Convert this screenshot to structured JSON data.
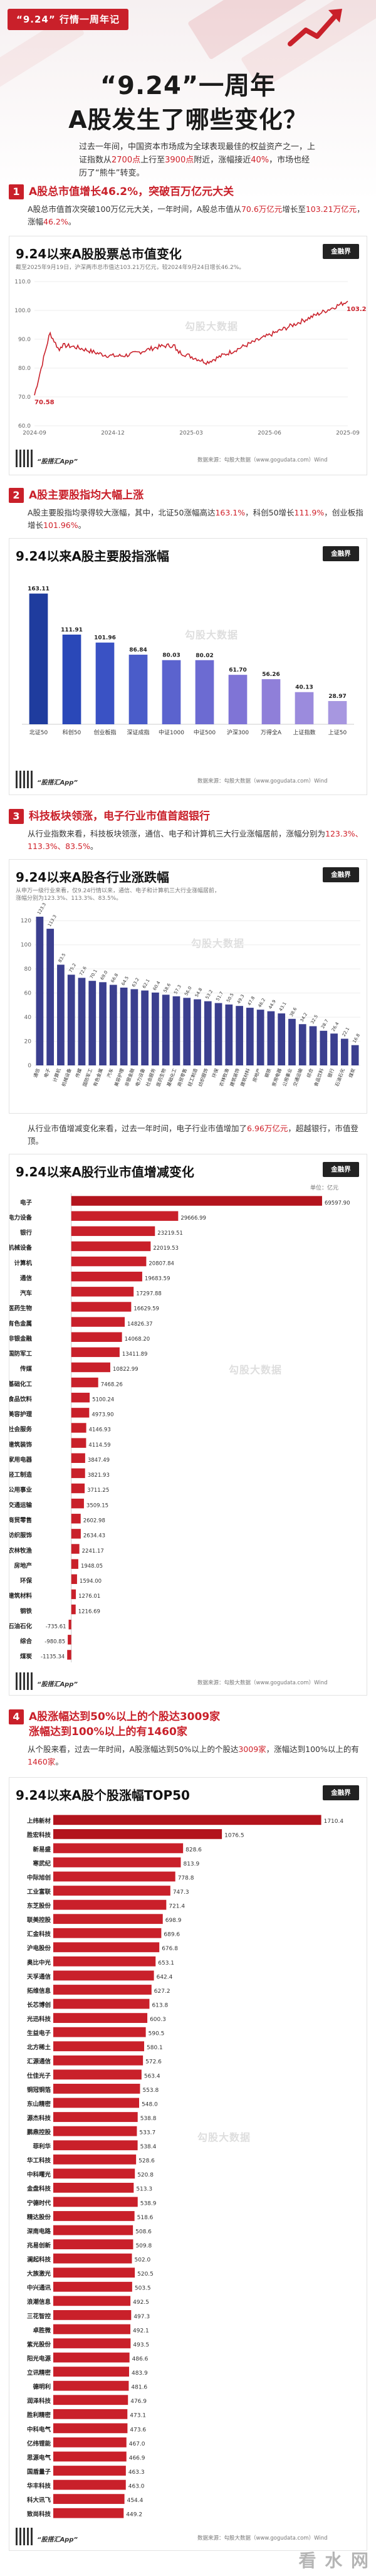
{
  "hero": {
    "tag": "“9.24” 行情一周年记",
    "title1": "“9.24”一周年",
    "title2": "A股发生了哪些变化？",
    "intro_a": "过去一年间，中国资本市场成为全球表现最佳的权益资产之一，上证指数从",
    "intro_b": "2700点",
    "intro_c": "上行至",
    "intro_d": "3900点",
    "intro_e": "附近，涨幅接近",
    "intro_f": "40%",
    "intro_g": "，市场也经历了“熊牛”转变。"
  },
  "s1": {
    "num": "1",
    "title": "A股总市值增长46.2%，突破百万亿元大关",
    "text_a": "A股总市值首次突破100万亿元大关，一年时间，A股总市值从",
    "text_b": "70.6万亿元",
    "text_c": "增长至",
    "text_d": "103.21万亿元",
    "text_e": "，涨幅",
    "text_f": "46.2%",
    "text_g": "。"
  },
  "card1": {
    "title": "9.24以来A股股票总市值变化",
    "sub": "截至2025年9月19日，沪深两市总市值达103.21万亿元，较2024年9月24日增长46.2%。",
    "logo": "金融界",
    "wm": "勾股大数据",
    "start_label": "70.58",
    "end_label": "103.21",
    "app": "“股搭汇App”",
    "note": "数据来源：勾股大数据（www.gogudata.com）Wind",
    "dates": [
      "2024-09",
      "2024-12",
      "2025-03",
      "2025-06",
      "2025-09"
    ]
  },
  "s2": {
    "num": "2",
    "title": "A股主要股指均大幅上涨",
    "text_a": "A股主要股指均录得较大涨幅，其中，北证50涨幅高达",
    "text_b": "163.1%",
    "text_c": "，科创50增长",
    "text_d": "111.9%",
    "text_e": "，创业板指增长",
    "text_f": "101.96%",
    "text_g": "。"
  },
  "card2": {
    "title": "9.24以来A股主要股指涨幅",
    "logo": "金融界",
    "wm": "勾股大数据",
    "app": "“股搭汇App”",
    "note": "数据来源：勾股大数据（www.gogudata.com）Wind"
  },
  "s3": {
    "num": "3",
    "title": "科技板块领涨，电子行业市值首超银行",
    "text_a": "从行业指数来看，科技板块领涨，通信、电子和计算机三大行业涨幅居前，涨幅分别为",
    "text_b": "123.3%、113.3%、83.5%",
    "text_c": "。"
  },
  "card3": {
    "title": "9.24以来A股各行业涨跌幅",
    "sub": "从申万一级行业来看，仅9.24行情以来，通信、电子和计算机三大行业涨幅居前，",
    "sub2": "涨幅分别为123.3%、113.3%、83.5%。",
    "logo": "金融界",
    "wm": "勾股大数据"
  },
  "s3b": {
    "text_a": "从行业市值增减变化来看，过去一年时间，电子行业市值增加了",
    "text_b": "6.96万亿元",
    "text_c": "，超越银行，市值登顶。"
  },
  "card4": {
    "title": "9.24以来A股行业市值增减变化",
    "unit": "单位：亿元",
    "logo": "金融界",
    "wm": "勾股大数据",
    "app": "“股搭汇App”",
    "note": "数据来源：勾股大数据（www.gogudata.com）Wind"
  },
  "s4": {
    "num": "4",
    "title1": "A股涨幅达到50%以上的个股达3009家",
    "title2": "涨幅达到100%以上的有1460家",
    "text_a": "从个股来看，过去一年时间，A股涨幅达到50%以上的个股达",
    "text_b": "3009家",
    "text_c": "，涨幅达到100%以上的有",
    "text_d": "1460家",
    "text_e": "。"
  },
  "card5": {
    "title": "9.24以来A股个股涨幅TOP50",
    "logo": "金融界",
    "wm": "勾股大数据",
    "app": "“股搭汇App”",
    "note": "数据来源：勾股大数据（www.gogudata.com）Wind"
  },
  "site_wm": "看 水 网",
  "chart_data": [
    {
      "type": "line",
      "title": "9.24以来A股股票总市值变化",
      "ylim": [
        60,
        110
      ],
      "yticks": [
        60,
        70,
        80,
        90,
        100,
        110
      ],
      "start": 70.58,
      "end": 103.21,
      "x": [
        "2024-09",
        "2024-12",
        "2025-03",
        "2025-06",
        "2025-09"
      ]
    },
    {
      "type": "bar",
      "title": "9.24以来A股主要股指涨幅",
      "categories": [
        "北证50",
        "科创50",
        "创业板指",
        "深证成指",
        "中证1000",
        "中证500",
        "沪深300",
        "万得全A",
        "上证指数",
        "上证50"
      ],
      "values": [
        163.11,
        111.91,
        101.96,
        86.84,
        80.03,
        80.02,
        61.7,
        56.26,
        40.13,
        28.97
      ],
      "ylim": [
        0,
        180
      ]
    },
    {
      "type": "bar",
      "title": "9.24以来A股各行业涨跌幅",
      "categories": [
        "通信",
        "电子",
        "计算机",
        "机械设备",
        "传媒",
        "国防军工",
        "有色金属",
        "汽车",
        "美容护理",
        "非银金融",
        "电力设备",
        "社会服务",
        "医药生物",
        "基础化工",
        "商贸零售",
        "轻工制造",
        "纺织服饰",
        "环保",
        "农林牧渔",
        "建筑装饰",
        "建筑材料",
        "房地产",
        "钢铁",
        "家用电器",
        "公用事业",
        "交通运输",
        "综合",
        "食品饮料",
        "银行",
        "石油石化",
        "煤炭"
      ],
      "values": [
        123.3,
        113.3,
        83.5,
        75.2,
        72.6,
        70.1,
        69.0,
        66.8,
        64.5,
        63.2,
        62.1,
        60.4,
        58.6,
        57.3,
        56.0,
        54.8,
        53.2,
        51.7,
        50.5,
        49.3,
        47.8,
        46.2,
        44.9,
        43.1,
        38.6,
        34.2,
        32.5,
        28.7,
        26.4,
        22.1,
        16.8
      ],
      "ylim": [
        0,
        130
      ]
    },
    {
      "type": "bar",
      "title": "9.24以来A股行业市值增减变化",
      "unit": "单位：亿元",
      "categories": [
        "电子",
        "电力设备",
        "银行",
        "机械设备",
        "计算机",
        "通信",
        "汽车",
        "医药生物",
        "有色金属",
        "非银金融",
        "国防军工",
        "传媒",
        "基础化工",
        "食品饮料",
        "美容护理",
        "社会服务",
        "建筑装饰",
        "家用电器",
        "轻工制造",
        "公用事业",
        "交通运输",
        "商贸零售",
        "纺织服饰",
        "农林牧渔",
        "房地产",
        "环保",
        "建筑材料",
        "钢铁",
        "石油石化",
        "综合",
        "煤炭"
      ],
      "values": [
        69597.9,
        29666.99,
        23219.51,
        22019.53,
        20807.84,
        19683.59,
        17297.88,
        16629.59,
        14826.37,
        14068.2,
        13411.89,
        10822.99,
        7468.26,
        5100.24,
        4973.9,
        4146.93,
        4114.59,
        3847.49,
        3821.93,
        3711.25,
        3509.15,
        2602.98,
        2634.43,
        2241.17,
        1948.05,
        1594.0,
        1276.01,
        1216.69,
        -735.61,
        -980.85,
        -1135.34
      ],
      "xlim": [
        -5000,
        75000
      ]
    },
    {
      "type": "bar",
      "title": "9.24以来A股个股涨幅TOP50",
      "categories": [
        "上纬新材",
        "胜宏科技",
        "新易盛",
        "寒武纪",
        "中际旭创",
        "工业富联",
        "东芝股份",
        "联美控股",
        "汇金科技",
        "沪电股份",
        "奥比中光",
        "天孚通信",
        "拓维信息",
        "长芯博创",
        "光迅科技",
        "生益电子",
        "北方稀土",
        "汇源通信",
        "仕佳光子",
        "铜冠铜箔",
        "东山精密",
        "源杰科技",
        "鹏鼎控股",
        "菲利华",
        "华工科技",
        "中科曙光",
        "金盘科技",
        "宁德时代",
        "精达股份",
        "深南电路",
        "兆易创新",
        "澜起科技",
        "大族激光",
        "中兴通讯",
        "浪潮信息",
        "三花智控",
        "卓胜微",
        "紫光股份",
        "阳光电源",
        "立讯精密",
        "德明利",
        "润泽科技",
        "胜利精密",
        "中科电气",
        "亿纬锂能",
        "思源电气",
        "国盾量子",
        "华丰科技",
        "科大讯飞",
        "致尚科技"
      ],
      "values": [
        1710.4,
        1076.5,
        828.6,
        813.9,
        778.8,
        747.3,
        721.4,
        698.9,
        689.6,
        676.8,
        653.1,
        642.4,
        627.2,
        613.8,
        600.3,
        590.5,
        580.1,
        572.6,
        563.4,
        553.8,
        548.0,
        538.8,
        533.7,
        538.4,
        528.6,
        520.8,
        513.3,
        538.9,
        518.6,
        508.6,
        509.8,
        502.0,
        520.5,
        503.5,
        492.5,
        497.3,
        492.1,
        493.5,
        486.6,
        483.9,
        481.6,
        476.9,
        473.1,
        473.6,
        467.0,
        466.9,
        463.3,
        463.0,
        454.4,
        449.2
      ],
      "xlim": [
        0,
        1900
      ]
    }
  ]
}
